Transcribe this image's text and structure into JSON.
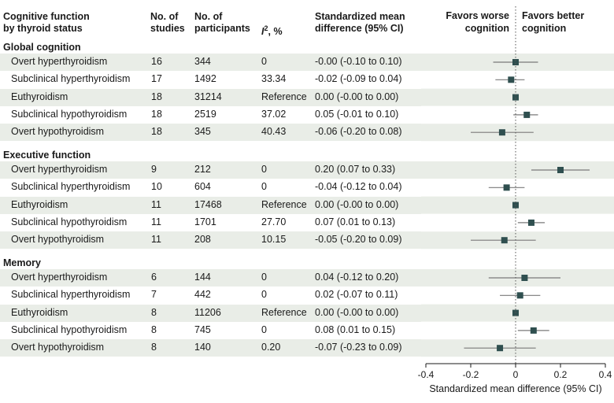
{
  "chart_data": {
    "type": "forest",
    "columns": {
      "group": "Cognitive function by thyroid status",
      "group_lines": [
        "Cognitive function",
        "by thyroid status"
      ],
      "studies_lines": [
        "No. of",
        "studies"
      ],
      "participants_lines": [
        "No. of",
        "participants"
      ],
      "i2_prefix": "I",
      "i2_sup": "2",
      "i2_suffix": ", %",
      "smd_lines": [
        "Standardized mean",
        "difference (95% CI)"
      ]
    },
    "favors": {
      "left_lines": [
        "Favors worse",
        "cognition"
      ],
      "right_lines": [
        "Favors better",
        "cognition"
      ]
    },
    "xlabel": "Standardized mean difference (95% CI)",
    "xlim": [
      -0.4,
      0.4
    ],
    "xticks": [
      "-0.4",
      "-0.2",
      "0",
      "0.2",
      "0.4"
    ],
    "xtick_values": [
      -0.4,
      -0.2,
      0,
      0.2,
      0.4
    ],
    "reference_line": 0,
    "sections": [
      {
        "name": "Global cognition",
        "rows": [
          {
            "label": "Overt hyperthyroidism",
            "studies": "16",
            "participants": "344",
            "i2": "0",
            "smd_text": "-0.00 (-0.10 to 0.10)",
            "est": 0.0,
            "lo": -0.1,
            "hi": 0.1
          },
          {
            "label": "Subclinical hyperthyroidism",
            "studies": "17",
            "participants": "1492",
            "i2": "33.34",
            "smd_text": "-0.02 (-0.09 to 0.04)",
            "est": -0.02,
            "lo": -0.09,
            "hi": 0.04
          },
          {
            "label": "Euthyroidism",
            "studies": "18",
            "participants": "31214",
            "i2": "Reference",
            "smd_text": "0.00 (-0.00 to 0.00)",
            "est": 0.0,
            "lo": 0.0,
            "hi": 0.0
          },
          {
            "label": "Subclinical hypothyroidism",
            "studies": "18",
            "participants": "2519",
            "i2": "37.02",
            "smd_text": "0.05 (-0.01 to 0.10)",
            "est": 0.05,
            "lo": -0.01,
            "hi": 0.1
          },
          {
            "label": "Overt hypothyroidism",
            "studies": "18",
            "participants": "345",
            "i2": "40.43",
            "smd_text": "-0.06 (-0.20 to 0.08)",
            "est": -0.06,
            "lo": -0.2,
            "hi": 0.08
          }
        ]
      },
      {
        "name": "Executive function",
        "rows": [
          {
            "label": "Overt hyperthyroidism",
            "studies": "9",
            "participants": "212",
            "i2": "0",
            "smd_text": "0.20 (0.07 to 0.33)",
            "est": 0.2,
            "lo": 0.07,
            "hi": 0.33
          },
          {
            "label": "Subclinical hyperthyroidism",
            "studies": "10",
            "participants": "604",
            "i2": "0",
            "smd_text": "-0.04 (-0.12 to 0.04)",
            "est": -0.04,
            "lo": -0.12,
            "hi": 0.04
          },
          {
            "label": "Euthyroidism",
            "studies": "11",
            "participants": "17468",
            "i2": "Reference",
            "smd_text": "0.00 (-0.00 to 0.00)",
            "est": 0.0,
            "lo": 0.0,
            "hi": 0.0
          },
          {
            "label": "Subclinical hypothyroidism",
            "studies": "11",
            "participants": "1701",
            "i2": "27.70",
            "smd_text": "0.07 (0.01 to 0.13)",
            "est": 0.07,
            "lo": 0.01,
            "hi": 0.13
          },
          {
            "label": "Overt hypothyroidism",
            "studies": "11",
            "participants": "208",
            "i2": "10.15",
            "smd_text": "-0.05 (-0.20 to 0.09)",
            "est": -0.05,
            "lo": -0.2,
            "hi": 0.09
          }
        ]
      },
      {
        "name": "Memory",
        "rows": [
          {
            "label": "Overt hyperthyroidism",
            "studies": "6",
            "participants": "144",
            "i2": "0",
            "smd_text": "0.04 (-0.12 to 0.20)",
            "est": 0.04,
            "lo": -0.12,
            "hi": 0.2
          },
          {
            "label": "Subclinical hyperthyroidism",
            "studies": "7",
            "participants": "442",
            "i2": "0",
            "smd_text": "0.02 (-0.07 to 0.11)",
            "est": 0.02,
            "lo": -0.07,
            "hi": 0.11
          },
          {
            "label": "Euthyroidism",
            "studies": "8",
            "participants": "11206",
            "i2": "Reference",
            "smd_text": "0.00 (-0.00 to 0.00)",
            "est": 0.0,
            "lo": 0.0,
            "hi": 0.0
          },
          {
            "label": "Subclinical hypothyroidism",
            "studies": "8",
            "participants": "745",
            "i2": "0",
            "smd_text": "0.08 (0.01 to 0.15)",
            "est": 0.08,
            "lo": 0.01,
            "hi": 0.15
          },
          {
            "label": "Overt hypothyroidism",
            "studies": "8",
            "participants": "140",
            "i2": "0.20",
            "smd_text": "-0.07 (-0.23 to 0.09)",
            "est": -0.07,
            "lo": -0.23,
            "hi": 0.09
          }
        ]
      }
    ],
    "colors": {
      "marker": "#2f4f4f",
      "ci_line": "#7a7a7a",
      "stripe": "#e9ede7",
      "axis": "#1a1a1a"
    }
  }
}
